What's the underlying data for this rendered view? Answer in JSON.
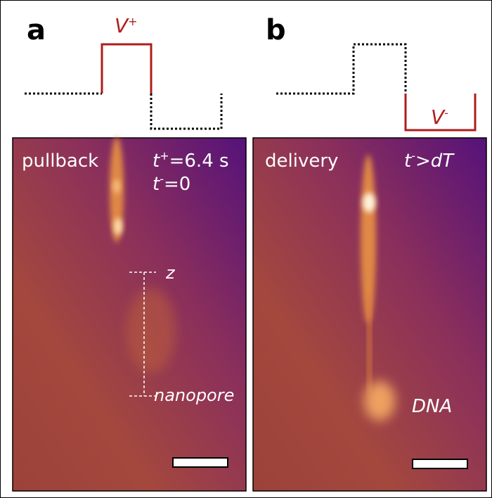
{
  "panels": [
    {
      "label": "a",
      "voltage": {
        "symbol": "V",
        "sign": "+"
      },
      "mode": "pullback",
      "time1": {
        "symbol": "t",
        "sign": "+",
        "rest": "=6.4 s"
      },
      "time2": {
        "symbol": "t",
        "sign": "-",
        "rest": "=0"
      },
      "marker_top": "z",
      "marker_bottom": "nanopore"
    },
    {
      "label": "b",
      "voltage": {
        "symbol": "V",
        "sign": "-"
      },
      "mode": "delivery",
      "time1": {
        "symbol": "t",
        "sign": "-",
        "rest": ">dT"
      },
      "annotation": "DNA"
    }
  ]
}
